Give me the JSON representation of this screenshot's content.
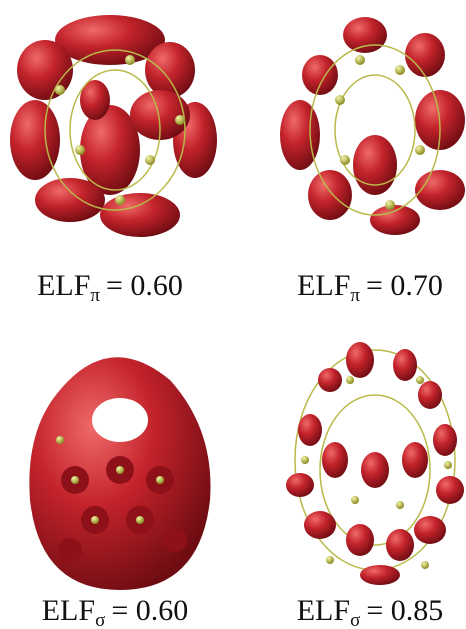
{
  "panels": [
    {
      "main": "ELF",
      "subscript": "π",
      "rest": "= 0.60"
    },
    {
      "main": "ELF",
      "subscript": "π",
      "rest": "= 0.70"
    },
    {
      "main": "ELF",
      "subscript": "σ",
      "rest": "= 0.60"
    },
    {
      "main": "ELF",
      "subscript": "σ",
      "rest": "= 0.85"
    }
  ]
}
